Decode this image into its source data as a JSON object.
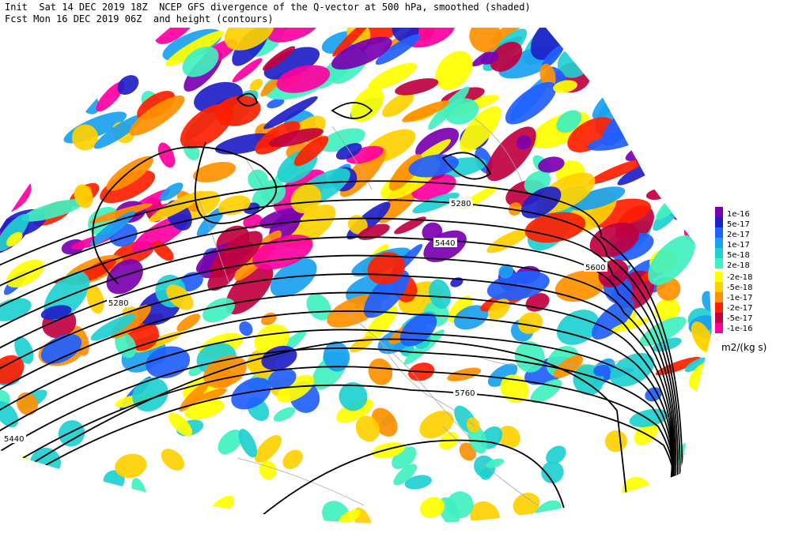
{
  "header": {
    "line1": "Init  Sat 14 DEC 2019 18Z  NCEP GFS divergence of the Q-vector at 500 hPa, smoothed (shaded)",
    "line2": "Fcst Mon 16 DEC 2019 06Z  and height (contours)"
  },
  "contour_labels": [
    "5280",
    "5440",
    "5600",
    "5280",
    "5760",
    "5440"
  ],
  "colorbar": {
    "labels": [
      "1e-16",
      "5e-17",
      "2e-17",
      "1e-17",
      "5e-18",
      "2e-18",
      "-2e-18",
      "-5e-18",
      "-1e-17",
      "-2e-17",
      "-5e-17",
      "-1e-16"
    ],
    "unit": "m2/(kg s)"
  }
}
